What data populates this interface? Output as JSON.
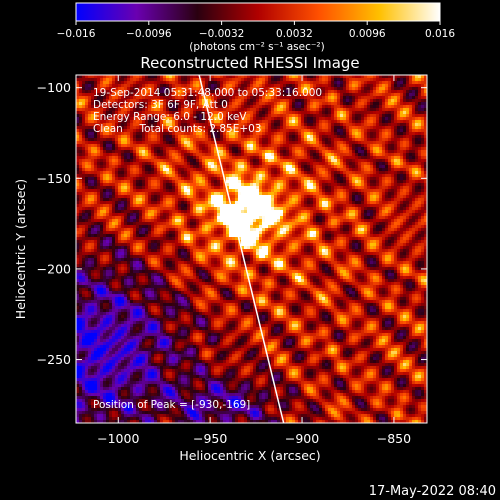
{
  "chart_data": {
    "type": "heatmap",
    "title": "Reconstructed RHESSI Image",
    "xlabel": "Heliocentric X (arcsec)",
    "ylabel": "Heliocentric Y (arcsec)",
    "xlim": [
      -1023,
      -832
    ],
    "ylim": [
      -285,
      -93
    ],
    "xticks": [
      -1000,
      -950,
      -900,
      -850
    ],
    "xtick_labels": [
      "−1000",
      "−950",
      "−900",
      "−850"
    ],
    "yticks": [
      -100,
      -150,
      -200,
      -250
    ],
    "ytick_labels": [
      "−100",
      "−150",
      "−200",
      "−250"
    ],
    "colorbar": {
      "range": [
        -0.016,
        0.016
      ],
      "ticks": [
        -0.016,
        -0.0096,
        -0.0032,
        0.0032,
        0.0096,
        0.016
      ],
      "tick_labels": [
        "−0.016",
        "−0.0096",
        "−0.0032",
        "0.0032",
        "0.0096",
        "0.016"
      ],
      "unit_label": "(photons cm⁻² s⁻¹ asec⁻²)",
      "colors": [
        "#0000ff",
        "#6a00b0",
        "#2a0010",
        "#b00000",
        "#ff5000",
        "#ffc000",
        "#ffffff"
      ]
    },
    "annotations": [
      "19-Sep-2014 05:31:48.000 to 05:33:16.000",
      "Detectors: 3F 6F 9F, Att 0",
      "Energy Range: 6.0 - 12.0 keV",
      "Clean     Total counts: 2.85E+03"
    ],
    "peak_label": "Position of Peak = [-930,-169]",
    "peak": [
      -930,
      -169
    ],
    "limb_line": [
      [
        -956,
        -93
      ],
      [
        -910,
        -285
      ]
    ]
  },
  "footer": {
    "timestamp": "17-May-2022 08:40"
  }
}
